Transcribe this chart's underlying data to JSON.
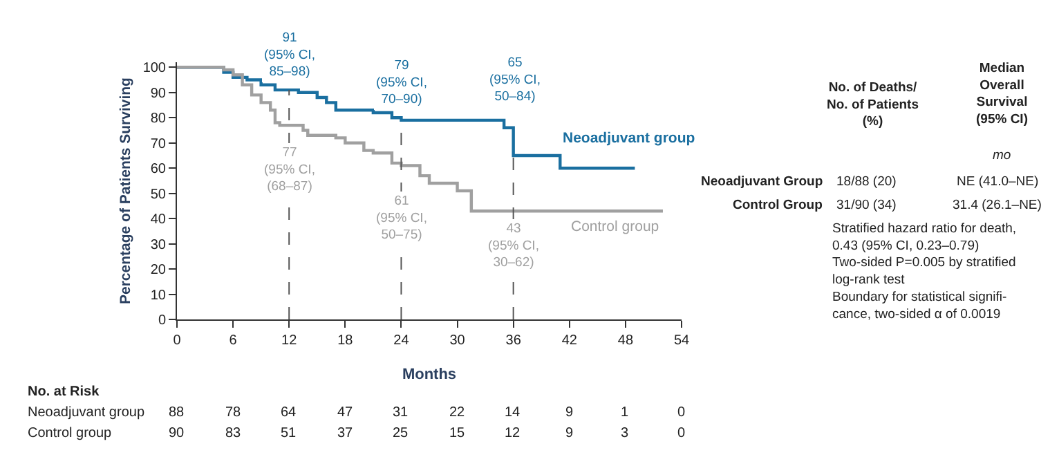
{
  "chart_data": {
    "type": "step",
    "xlabel": "Months",
    "ylabel": "Percentage of Patients Surviving",
    "xlim": [
      0,
      54
    ],
    "xticks": [
      0,
      6,
      12,
      18,
      24,
      30,
      36,
      42,
      48,
      54
    ],
    "ylim": [
      0,
      102
    ],
    "yticks": [
      0,
      10,
      20,
      30,
      40,
      50,
      60,
      70,
      80,
      90,
      100
    ],
    "legend": false,
    "marker": "none",
    "line_style": "solid",
    "series": [
      {
        "name": "Neoadjuvant group",
        "color": "#1a6fa0",
        "x": [
          0,
          5,
          6,
          7.5,
          9,
          10.5,
          12,
          13,
          15,
          16,
          17,
          21,
          23,
          24,
          34,
          35,
          36,
          41,
          49
        ],
        "values": [
          100,
          98,
          96,
          95,
          93,
          91,
          91,
          90,
          88,
          86,
          83,
          82,
          80,
          79,
          79,
          76,
          65,
          60,
          60
        ]
      },
      {
        "name": "Control group",
        "color": "#a0a0a0",
        "x": [
          0,
          5,
          6,
          7,
          8,
          9,
          10,
          10.5,
          11,
          12,
          13.5,
          14,
          17,
          18,
          20,
          21,
          23,
          24,
          25.5,
          26,
          27,
          30,
          31.5,
          52
        ],
        "values": [
          100,
          99,
          97,
          93,
          89,
          86,
          83,
          78,
          77,
          77,
          75,
          73,
          72,
          70,
          67,
          66,
          62,
          61,
          61,
          57,
          54,
          51,
          43,
          43
        ]
      }
    ],
    "ref_lines": [
      {
        "axis": "x",
        "value": 12,
        "line_style": "dashed"
      },
      {
        "axis": "x",
        "value": 24,
        "line_style": "dashed"
      },
      {
        "axis": "x",
        "value": 36,
        "line_style": "dashed"
      }
    ],
    "annotations": [
      "No. at Risk",
      "Neoadjuvant group",
      "88",
      "78",
      "64",
      "47",
      "31",
      "22",
      "14",
      "9",
      "1",
      "0",
      "Control group",
      "90",
      "83",
      "51",
      "37",
      "25",
      "15",
      "12",
      "9",
      "3",
      "0",
      "No. of Deaths/\nNo. of Patients\n(%)",
      "Median\nOverall\nSurvival\n(95% CI)",
      "mo",
      "Neoadjuvant Group",
      "18/88 (20)",
      "NE (41.0–NE)",
      "Control Group",
      "31/90 (34)",
      "31.4 (26.1–NE)",
      "Stratified hazard ratio for death,\n0.43 (95% CI, 0.23–0.79)\nTwo-sided P=0.005 by stratified\nlog-rank test\nBoundary for statistical signifi-\ncance, two-sided α of 0.0019",
      "65\n(95% CI,\n50–84)",
      {
        "text": "91\n(95% CI,\n85–98)",
        "x": 12,
        "y": 91
      },
      {
        "text": "79\n(95% CI,\n70–90)",
        "x": 24,
        "y": 79
      },
      {
        "text": "77\n(95% CI,\n(68–87)",
        "x": 12,
        "y": 77
      },
      {
        "text": "61\n(95% CI,\n50–75)",
        "x": 24,
        "y": 61
      },
      {
        "text": "43\n(95% CI,\n30–62)",
        "x": 36,
        "y": 43
      }
    ]
  }
}
